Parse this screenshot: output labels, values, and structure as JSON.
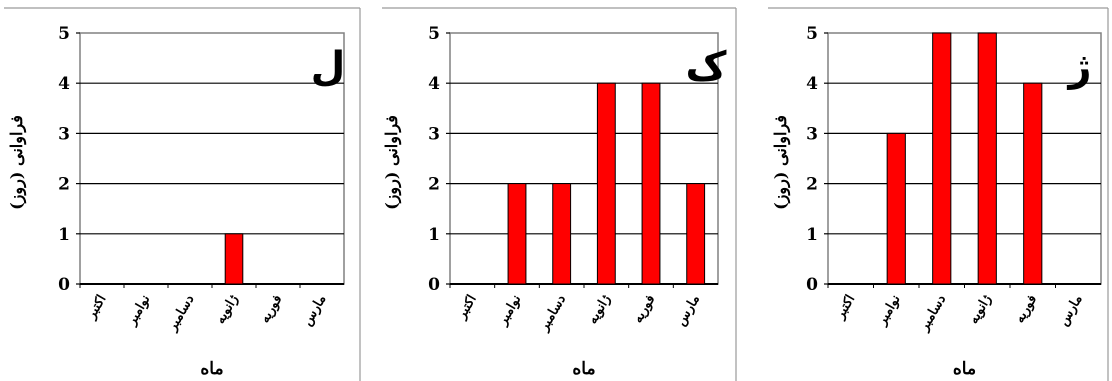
{
  "chart_data": [
    {
      "type": "bar",
      "title": "ل",
      "xlabel": "ماه",
      "ylabel": "فراوانی (روز)",
      "categories": [
        "اکتبر",
        "نوامبر",
        "دسامبر",
        "ژانویه",
        "فوریه",
        "مارس"
      ],
      "values": [
        0,
        0,
        0,
        1,
        0,
        0
      ],
      "ylim": [
        0,
        5
      ],
      "yticks": [
        "0",
        "1",
        "2",
        "3",
        "4",
        "5"
      ],
      "grid": true,
      "bar_color": "#ff0000"
    },
    {
      "type": "bar",
      "title": "ک",
      "xlabel": "ماه",
      "ylabel": "فراوانی (روز)",
      "categories": [
        "اکتبر",
        "نوامبر",
        "دسامبر",
        "ژانویه",
        "فوریه",
        "مارس"
      ],
      "values": [
        0,
        2,
        2,
        4,
        4,
        2
      ],
      "ylim": [
        0,
        5
      ],
      "yticks": [
        "0",
        "1",
        "2",
        "3",
        "4",
        "5"
      ],
      "grid": true,
      "bar_color": "#ff0000"
    },
    {
      "type": "bar",
      "title": "ژ",
      "xlabel": "ماه",
      "ylabel": "فراوانی (روز)",
      "categories": [
        "اکتبر",
        "نوامبر",
        "دسامبر",
        "ژانویه",
        "فوریه",
        "مارس"
      ],
      "values": [
        0,
        3,
        5,
        5,
        4,
        0
      ],
      "ylim": [
        0,
        5
      ],
      "yticks": [
        "0",
        "1",
        "2",
        "3",
        "4",
        "5"
      ],
      "grid": true,
      "bar_color": "#ff0000"
    }
  ]
}
